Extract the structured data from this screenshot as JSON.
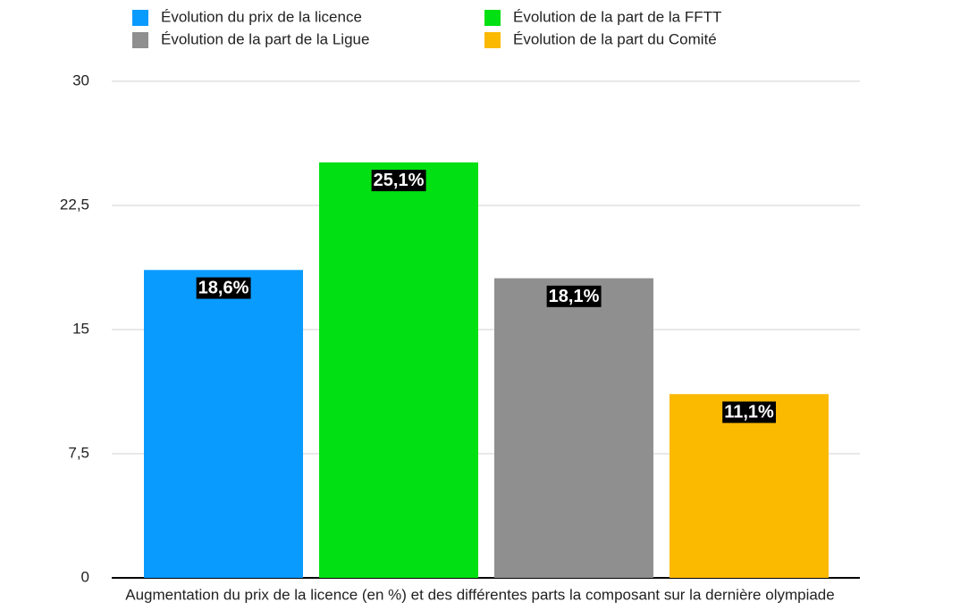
{
  "chart_data": {
    "type": "bar",
    "x_label": "Augmentation du prix de la licence (en %) et des différentes parts la composant sur la dernière olympiade",
    "categories": [
      null
    ],
    "series": [
      {
        "name": "Évolution du prix de la licence",
        "color": "#0a9bff",
        "values": [
          18.6
        ],
        "value_labels": [
          "18,6%"
        ]
      },
      {
        "name": "Évolution de la part de la FFTT",
        "color": "#00e012",
        "values": [
          25.1
        ],
        "value_labels": [
          "25,1%"
        ]
      },
      {
        "name": "Évolution de la part de la Ligue",
        "color": "#8f8f8f",
        "values": [
          18.1
        ],
        "value_labels": [
          "18,1%"
        ]
      },
      {
        "name": "Évolution de la part du Comité",
        "color": "#fbb900",
        "values": [
          11.1
        ],
        "value_labels": [
          "11,1%"
        ]
      }
    ],
    "ylim": [
      0,
      30
    ],
    "yticks": [
      0,
      {
        "value": 7.5,
        "label": "7,5"
      },
      15,
      {
        "value": 22.5,
        "label": "22,5"
      },
      30
    ],
    "grid": true
  }
}
